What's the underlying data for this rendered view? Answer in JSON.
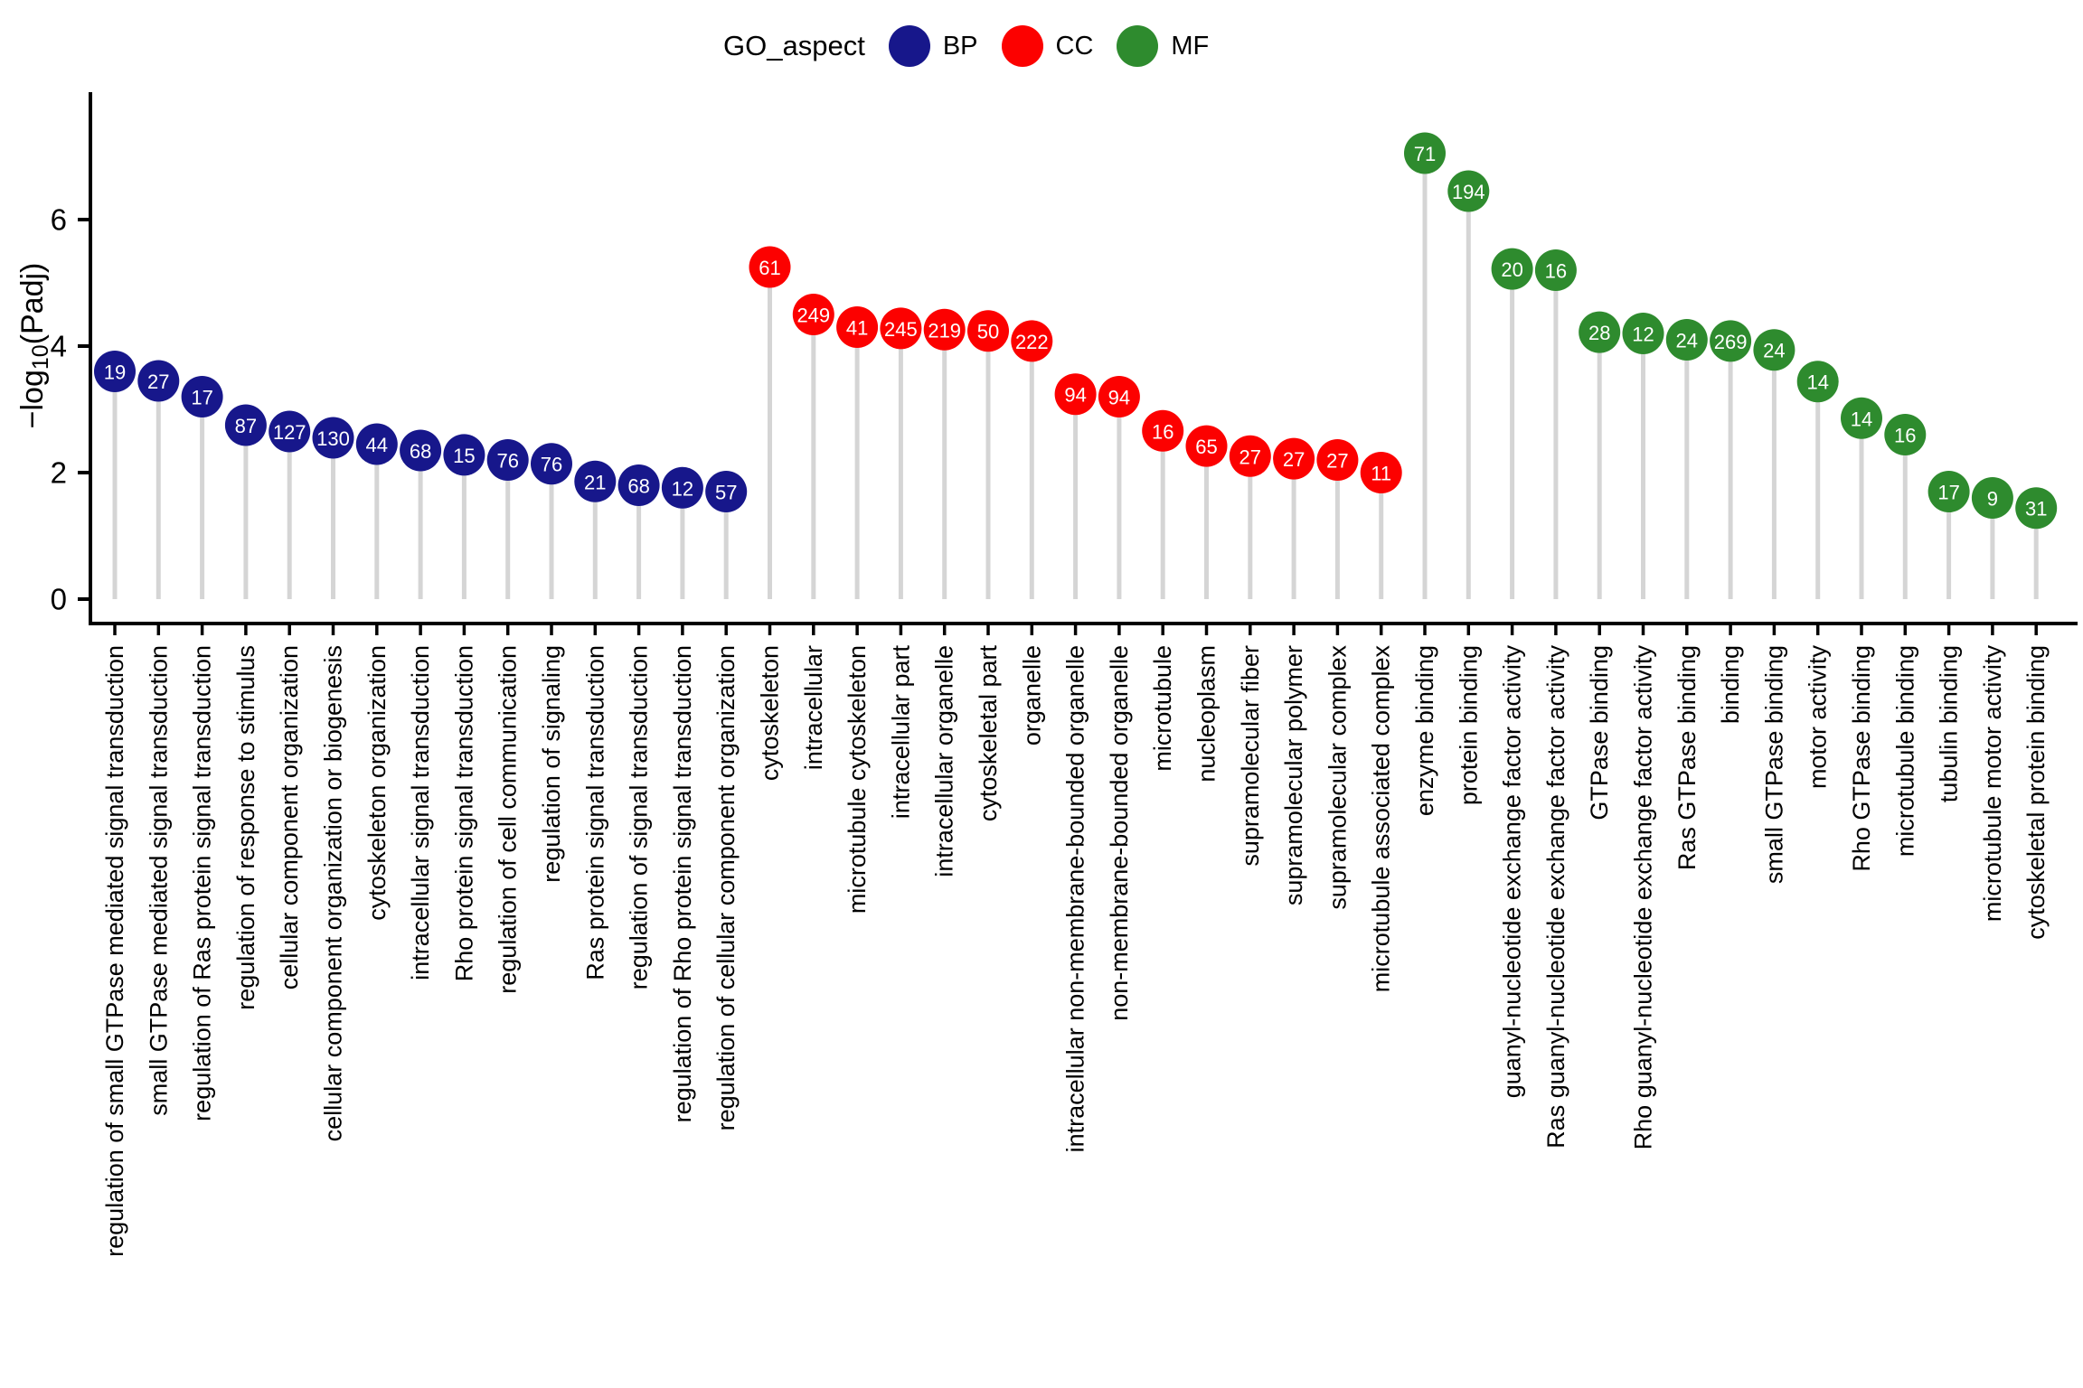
{
  "legend": {
    "title": "GO_aspect",
    "items": [
      {
        "label": "BP",
        "color": "#17178B"
      },
      {
        "label": "CC",
        "color": "#FC0100"
      },
      {
        "label": "MF",
        "color": "#2E8B2E"
      }
    ]
  },
  "axis": {
    "y_title_prefix": "−log",
    "y_title_sub": "10",
    "y_title_suffix": "(Padj)"
  },
  "chart_data": {
    "type": "scatter",
    "style": "lollipop",
    "title": "",
    "xlabel": "",
    "ylabel": "-log10(Padj)",
    "ylim": [
      0,
      7.6
    ],
    "yticks": [
      0,
      2,
      4,
      6
    ],
    "grid": false,
    "legend_position": "top",
    "legend_title": "GO_aspect",
    "stem_color": "#D5D5D5",
    "series": [
      {
        "name": "BP",
        "color": "#17178B",
        "points": [
          {
            "label": "regulation of small GTPase mediated signal transduction",
            "value": 3.6,
            "count": 19
          },
          {
            "label": "small GTPase mediated signal transduction",
            "value": 3.45,
            "count": 27
          },
          {
            "label": "regulation of Ras protein signal transduction",
            "value": 3.2,
            "count": 17
          },
          {
            "label": "regulation of response to stimulus",
            "value": 2.75,
            "count": 87
          },
          {
            "label": "cellular component organization",
            "value": 2.65,
            "count": 127
          },
          {
            "label": "cellular component organization or biogenesis",
            "value": 2.55,
            "count": 130
          },
          {
            "label": "cytoskeleton organization",
            "value": 2.45,
            "count": 44
          },
          {
            "label": "intracellular signal transduction",
            "value": 2.35,
            "count": 68
          },
          {
            "label": "Rho protein signal transduction",
            "value": 2.28,
            "count": 15
          },
          {
            "label": "regulation of cell communication",
            "value": 2.2,
            "count": 76
          },
          {
            "label": "regulation of signaling",
            "value": 2.14,
            "count": 76
          },
          {
            "label": "Ras protein signal transduction",
            "value": 1.86,
            "count": 21
          },
          {
            "label": "regulation of signal transduction",
            "value": 1.8,
            "count": 68
          },
          {
            "label": "regulation of Rho protein signal transduction",
            "value": 1.76,
            "count": 12
          },
          {
            "label": "regulation of cellular component organization",
            "value": 1.7,
            "count": 57
          }
        ]
      },
      {
        "name": "CC",
        "color": "#FC0100",
        "points": [
          {
            "label": "cytoskeleton",
            "value": 5.25,
            "count": 61
          },
          {
            "label": "intracellular",
            "value": 4.5,
            "count": 249
          },
          {
            "label": "microtubule cytoskeleton",
            "value": 4.3,
            "count": 41
          },
          {
            "label": "intracellular part",
            "value": 4.28,
            "count": 245
          },
          {
            "label": "intracellular organelle",
            "value": 4.26,
            "count": 219
          },
          {
            "label": "cytoskeletal part",
            "value": 4.24,
            "count": 50
          },
          {
            "label": "organelle",
            "value": 4.08,
            "count": 222
          },
          {
            "label": "intracellular non-membrane-bounded organelle",
            "value": 3.24,
            "count": 94
          },
          {
            "label": "non-membrane-bounded organelle",
            "value": 3.2,
            "count": 94
          },
          {
            "label": "microtubule",
            "value": 2.66,
            "count": 16
          },
          {
            "label": "nucleoplasm",
            "value": 2.42,
            "count": 65
          },
          {
            "label": "supramolecular fiber",
            "value": 2.26,
            "count": 27
          },
          {
            "label": "supramolecular polymer",
            "value": 2.22,
            "count": 27
          },
          {
            "label": "supramolecular complex",
            "value": 2.2,
            "count": 27
          },
          {
            "label": "microtubule associated complex",
            "value": 2.0,
            "count": 11
          }
        ]
      },
      {
        "name": "MF",
        "color": "#2E8B2E",
        "points": [
          {
            "label": "enzyme binding",
            "value": 7.05,
            "count": 71
          },
          {
            "label": "protein binding",
            "value": 6.45,
            "count": 194
          },
          {
            "label": "guanyl-nucleotide exchange factor activity",
            "value": 5.22,
            "count": 20
          },
          {
            "label": "Ras guanyl-nucleotide exchange factor activity",
            "value": 5.2,
            "count": 16
          },
          {
            "label": "GTPase binding",
            "value": 4.22,
            "count": 28
          },
          {
            "label": "Rho guanyl-nucleotide exchange factor activity",
            "value": 4.2,
            "count": 12
          },
          {
            "label": "Ras GTPase binding",
            "value": 4.1,
            "count": 24
          },
          {
            "label": "binding",
            "value": 4.08,
            "count": 269
          },
          {
            "label": "small GTPase binding",
            "value": 3.94,
            "count": 24
          },
          {
            "label": "motor activity",
            "value": 3.44,
            "count": 14
          },
          {
            "label": "Rho GTPase binding",
            "value": 2.86,
            "count": 14
          },
          {
            "label": "microtubule binding",
            "value": 2.6,
            "count": 16
          },
          {
            "label": "tubulin binding",
            "value": 1.7,
            "count": 17
          },
          {
            "label": "microtubule motor activity",
            "value": 1.6,
            "count": 9
          },
          {
            "label": "cytoskeletal protein binding",
            "value": 1.44,
            "count": 31
          }
        ]
      }
    ]
  }
}
